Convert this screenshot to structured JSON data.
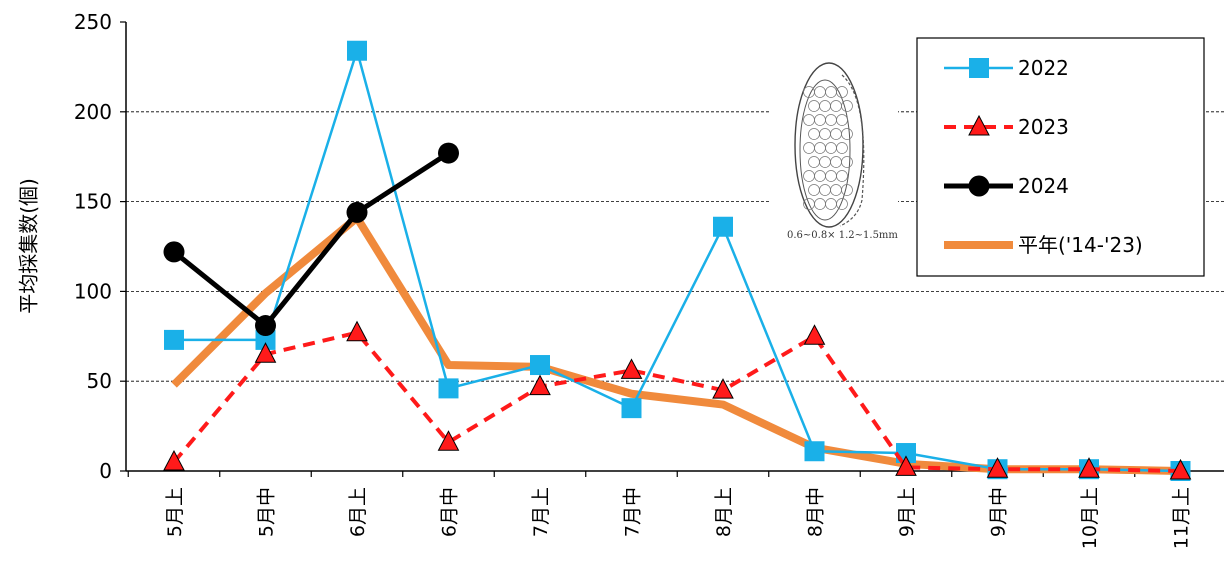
{
  "chart_data": {
    "type": "line",
    "title": "",
    "ylabel": "平均採集数(個)",
    "xlabel": "",
    "ylim": [
      0,
      250
    ],
    "yticks": [
      0,
      50,
      100,
      150,
      200,
      250
    ],
    "grid": "horizontal dashed",
    "legend_position": "top-right",
    "categories": [
      "5月上",
      "5月中",
      "6月上",
      "6月中",
      "7月上",
      "7月中",
      "8月上",
      "8月中",
      "9月上",
      "9月中",
      "10月上",
      "11月上"
    ],
    "series": [
      {
        "name": "2022",
        "color": "#1AB0E8",
        "marker": "square",
        "line": "solid-thin",
        "values": [
          73,
          73,
          234,
          46,
          59,
          35,
          136,
          11,
          10,
          1,
          1,
          0
        ]
      },
      {
        "name": "2023",
        "color": "#FF1A1A",
        "marker": "triangle",
        "line": "dashed",
        "values": [
          5,
          65,
          77,
          16,
          47,
          56,
          45,
          75,
          2,
          1,
          1,
          0
        ]
      },
      {
        "name": "2024",
        "color": "#000000",
        "marker": "circle",
        "line": "solid-thick",
        "values": [
          122,
          81,
          144,
          177,
          null,
          null,
          null,
          null,
          null,
          null,
          null,
          null
        ]
      },
      {
        "name": "平年('14-'23)",
        "color": "#F08A3C",
        "marker": "none",
        "line": "solid-heavy",
        "values": [
          48,
          99,
          141,
          59,
          58,
          43,
          37,
          13,
          4,
          1,
          1,
          0
        ]
      }
    ]
  },
  "illustration": {
    "icon": "egg-mass-icon",
    "caption": "0.6~0.8× 1.2~1.5mm"
  }
}
